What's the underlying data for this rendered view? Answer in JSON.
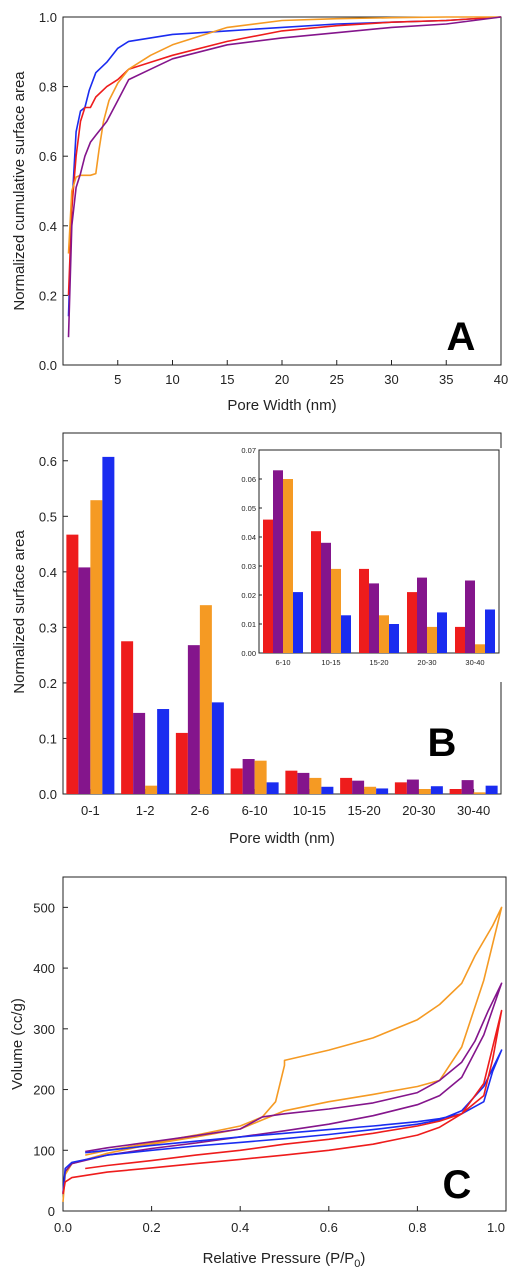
{
  "colors": {
    "red": "#ee1c1c",
    "purple": "#84158c",
    "orange": "#f59a23",
    "blue": "#1a2cf0"
  },
  "chart_data": [
    {
      "panel": "A",
      "type": "line",
      "xlabel": "Pore Width (nm)",
      "ylabel": "Normalized cumulative surface area",
      "xlim": [
        0,
        40
      ],
      "ylim": [
        0,
        1.0
      ],
      "xticks": [
        5,
        10,
        15,
        20,
        25,
        30,
        35,
        40
      ],
      "yticks": [
        0.0,
        0.2,
        0.4,
        0.6,
        0.8,
        1.0
      ],
      "xtick_labels": [
        "5",
        "10",
        "15",
        "20",
        "25",
        "30",
        "35",
        "40"
      ],
      "ytick_labels": [
        "0.0",
        "0.2",
        "0.4",
        "0.6",
        "0.8",
        "1.0"
      ],
      "series": [
        {
          "color": "blue",
          "x": [
            0.5,
            0.8,
            1.2,
            1.6,
            2.0,
            2.4,
            3.0,
            4.0,
            5.0,
            6.0,
            8.0,
            10,
            15,
            20,
            25,
            30,
            35,
            40
          ],
          "y": [
            0.14,
            0.45,
            0.67,
            0.73,
            0.74,
            0.79,
            0.84,
            0.87,
            0.91,
            0.93,
            0.94,
            0.95,
            0.96,
            0.97,
            0.98,
            0.985,
            0.99,
            1.0
          ]
        },
        {
          "color": "red",
          "x": [
            0.5,
            0.8,
            1.2,
            1.6,
            2.0,
            2.5,
            3.0,
            4.0,
            5.0,
            6.0,
            8.0,
            10,
            15,
            20,
            25,
            30,
            35,
            40
          ],
          "y": [
            0.2,
            0.45,
            0.6,
            0.7,
            0.74,
            0.74,
            0.77,
            0.8,
            0.82,
            0.85,
            0.87,
            0.89,
            0.93,
            0.96,
            0.975,
            0.985,
            0.99,
            1.0
          ]
        },
        {
          "color": "orange",
          "x": [
            0.5,
            0.8,
            1.2,
            1.6,
            2.0,
            2.5,
            3.0,
            3.3,
            3.7,
            4.2,
            5.0,
            6.0,
            8.0,
            10,
            15,
            20,
            25,
            30,
            35,
            40
          ],
          "y": [
            0.32,
            0.5,
            0.54,
            0.545,
            0.545,
            0.545,
            0.55,
            0.62,
            0.7,
            0.76,
            0.81,
            0.85,
            0.89,
            0.92,
            0.97,
            0.99,
            0.995,
            0.998,
            1.0,
            1.0
          ]
        },
        {
          "color": "purple",
          "x": [
            0.5,
            0.8,
            1.2,
            1.6,
            2.0,
            2.5,
            3.0,
            4.0,
            5.0,
            6.0,
            8.0,
            10,
            15,
            20,
            25,
            30,
            35,
            40
          ],
          "y": [
            0.08,
            0.4,
            0.51,
            0.55,
            0.6,
            0.64,
            0.66,
            0.7,
            0.76,
            0.82,
            0.85,
            0.88,
            0.92,
            0.94,
            0.955,
            0.97,
            0.98,
            1.0
          ]
        }
      ]
    },
    {
      "panel": "B",
      "type": "bar",
      "xlabel": "Pore width (nm)",
      "ylabel": "Normalized surface area",
      "ylim": [
        0,
        0.65
      ],
      "yticks": [
        0.0,
        0.1,
        0.2,
        0.3,
        0.4,
        0.5,
        0.6
      ],
      "ytick_labels": [
        "0.0",
        "0.1",
        "0.2",
        "0.3",
        "0.4",
        "0.5",
        "0.6"
      ],
      "categories": [
        "0-1",
        "1-2",
        "2-6",
        "6-10",
        "10-15",
        "15-20",
        "20-30",
        "30-40"
      ],
      "series": [
        {
          "color": "red",
          "values": [
            0.467,
            0.275,
            0.11,
            0.046,
            0.042,
            0.029,
            0.021,
            0.009
          ]
        },
        {
          "color": "purple",
          "values": [
            0.408,
            0.146,
            0.268,
            0.063,
            0.038,
            0.024,
            0.026,
            0.025
          ]
        },
        {
          "color": "orange",
          "values": [
            0.529,
            0.015,
            0.34,
            0.06,
            0.029,
            0.013,
            0.009,
            0.003
          ]
        },
        {
          "color": "blue",
          "values": [
            0.607,
            0.153,
            0.165,
            0.021,
            0.013,
            0.01,
            0.014,
            0.015
          ]
        }
      ],
      "inset": {
        "type": "bar",
        "ylim": [
          0,
          0.07
        ],
        "yticks": [
          0.0,
          0.01,
          0.02,
          0.03,
          0.04,
          0.05,
          0.06,
          0.07
        ],
        "ytick_labels": [
          "0.00",
          "0.01",
          "0.02",
          "0.03",
          "0.04",
          "0.05",
          "0.06",
          "0.07"
        ],
        "categories": [
          "6-10",
          "10-15",
          "15-20",
          "20-30",
          "30-40"
        ],
        "series": [
          {
            "color": "red",
            "values": [
              0.046,
              0.042,
              0.029,
              0.021,
              0.009
            ]
          },
          {
            "color": "purple",
            "values": [
              0.063,
              0.038,
              0.024,
              0.026,
              0.025
            ]
          },
          {
            "color": "orange",
            "values": [
              0.06,
              0.029,
              0.013,
              0.009,
              0.003
            ]
          },
          {
            "color": "blue",
            "values": [
              0.021,
              0.013,
              0.01,
              0.014,
              0.015
            ]
          }
        ]
      }
    },
    {
      "panel": "C",
      "type": "line",
      "xlabel_main": "Relative Pressure (P/P",
      "xlabel_sub": "0",
      "xlabel_end": ")",
      "ylabel": "Volume (cc/g)",
      "xlim": [
        0,
        1.0
      ],
      "ylim": [
        0,
        550
      ],
      "xticks": [
        0.0,
        0.2,
        0.4,
        0.6,
        0.8,
        1.0
      ],
      "yticks": [
        0,
        100,
        200,
        300,
        400,
        500
      ],
      "xtick_labels": [
        "0.0",
        "0.2",
        "0.4",
        "0.6",
        "0.8",
        "1.0"
      ],
      "ytick_labels": [
        "0",
        "100",
        "200",
        "300",
        "400",
        "500"
      ],
      "series": [
        {
          "color": "orange",
          "x": [
            0.0,
            0.005,
            0.02,
            0.1,
            0.2,
            0.3,
            0.4,
            0.45,
            0.5,
            0.6,
            0.7,
            0.8,
            0.85,
            0.9,
            0.95,
            0.99,
            0.97,
            0.93,
            0.9,
            0.85,
            0.8,
            0.7,
            0.6,
            0.5,
            0.5,
            0.48,
            0.45,
            0.4,
            0.3,
            0.2,
            0.1,
            0.05
          ],
          "y": [
            15,
            60,
            78,
            95,
            110,
            122,
            135,
            150,
            165,
            180,
            192,
            205,
            215,
            270,
            380,
            500,
            470,
            420,
            375,
            340,
            315,
            285,
            265,
            248,
            240,
            180,
            155,
            140,
            125,
            112,
            100,
            92
          ]
        },
        {
          "color": "purple",
          "x": [
            0.0,
            0.005,
            0.02,
            0.1,
            0.2,
            0.3,
            0.4,
            0.5,
            0.6,
            0.7,
            0.8,
            0.85,
            0.9,
            0.95,
            0.99,
            0.96,
            0.93,
            0.9,
            0.85,
            0.8,
            0.7,
            0.6,
            0.5,
            0.45,
            0.4,
            0.3,
            0.2,
            0.1,
            0.05
          ],
          "y": [
            30,
            65,
            78,
            92,
            103,
            112,
            122,
            132,
            143,
            157,
            175,
            190,
            220,
            290,
            375,
            330,
            280,
            245,
            215,
            195,
            178,
            168,
            160,
            155,
            135,
            124,
            114,
            104,
            98
          ]
        },
        {
          "color": "blue",
          "x": [
            0.0,
            0.005,
            0.02,
            0.1,
            0.2,
            0.3,
            0.4,
            0.5,
            0.6,
            0.7,
            0.8,
            0.85,
            0.9,
            0.95,
            0.99,
            0.97,
            0.95,
            0.9,
            0.85,
            0.8,
            0.7,
            0.6,
            0.5,
            0.4,
            0.3,
            0.2,
            0.1,
            0.05
          ],
          "y": [
            28,
            70,
            80,
            92,
            100,
            107,
            113,
            119,
            126,
            134,
            143,
            150,
            165,
            205,
            265,
            230,
            180,
            160,
            152,
            147,
            140,
            134,
            128,
            122,
            115,
            108,
            100,
            96
          ]
        },
        {
          "color": "red",
          "x": [
            0.0,
            0.005,
            0.02,
            0.1,
            0.2,
            0.3,
            0.4,
            0.5,
            0.6,
            0.7,
            0.8,
            0.85,
            0.9,
            0.95,
            0.99,
            0.97,
            0.95,
            0.9,
            0.85,
            0.8,
            0.7,
            0.6,
            0.5,
            0.4,
            0.3,
            0.2,
            0.1,
            0.05
          ],
          "y": [
            28,
            48,
            55,
            64,
            71,
            78,
            85,
            92,
            100,
            110,
            125,
            138,
            160,
            210,
            330,
            250,
            190,
            160,
            148,
            140,
            128,
            118,
            110,
            100,
            92,
            83,
            75,
            70
          ]
        }
      ]
    }
  ],
  "panel_labels": [
    "A",
    "B",
    "C"
  ]
}
